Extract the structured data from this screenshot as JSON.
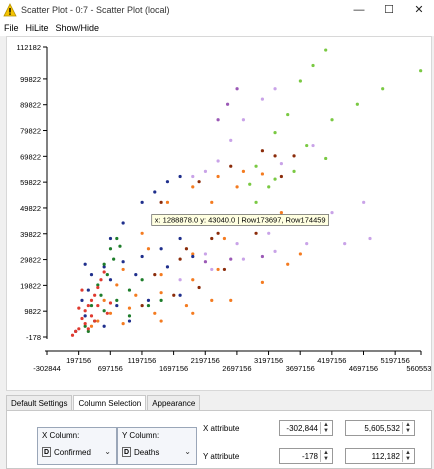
{
  "window": {
    "title": "Scatter Plot - 0:7 - Scatter Plot (local)",
    "minimize": "—",
    "maximize": "☐",
    "close": "✕"
  },
  "menu": [
    "File",
    "HiLite",
    "Show/Hide"
  ],
  "chart_data": {
    "type": "scatter",
    "title": "",
    "xlabel": "",
    "ylabel": "",
    "xlim": [
      -302844,
      5605532
    ],
    "ylim": [
      -178,
      112182
    ],
    "x_ticks_upper": [
      "197156",
      "1197156",
      "2197156",
      "3197156",
      "4197156",
      "5197156"
    ],
    "x_ticks_lower": [
      "-302844",
      "697156",
      "1697156",
      "2697156",
      "3697156",
      "4697156",
      "5605532"
    ],
    "y_ticks": [
      "112182",
      "99822",
      "89822",
      "79822",
      "69822",
      "59822",
      "49822",
      "39822",
      "29822",
      "19822",
      "9822",
      "-178"
    ],
    "tooltip": "x: 1288878.0 y: 43040.0 | Row173697, Row174459",
    "tooltip_point": {
      "x": 1288878.0,
      "y": 43040.0
    },
    "series": [
      {
        "name": "",
        "color": "#7ac943",
        "points": [
          [
            2900000,
            59000
          ],
          [
            3300000,
            79000
          ],
          [
            3700000,
            99000
          ],
          [
            4100000,
            111000
          ],
          [
            3000000,
            66000
          ],
          [
            3500000,
            86000
          ],
          [
            3900000,
            105000
          ],
          [
            3300000,
            61000
          ],
          [
            4200000,
            84000
          ],
          [
            5000000,
            96000
          ],
          [
            5600000,
            103000
          ],
          [
            3800000,
            74000
          ],
          [
            4600000,
            90000
          ],
          [
            2850000,
            46000
          ],
          [
            3000000,
            52000
          ],
          [
            3200000,
            58000
          ],
          [
            3600000,
            64000
          ],
          [
            4100000,
            69000
          ]
        ]
      },
      {
        "name": "",
        "color": "#f47b20",
        "points": [
          [
            600000,
            14000
          ],
          [
            900000,
            26000
          ],
          [
            1200000,
            40000
          ],
          [
            1600000,
            52000
          ],
          [
            2000000,
            58000
          ],
          [
            2400000,
            62000
          ],
          [
            2800000,
            64000
          ],
          [
            800000,
            20000
          ],
          [
            1300000,
            34000
          ],
          [
            1800000,
            44000
          ],
          [
            2300000,
            52000
          ],
          [
            2700000,
            58000
          ],
          [
            3100000,
            63000
          ],
          [
            700000,
            9000
          ],
          [
            1100000,
            16000
          ],
          [
            1500000,
            24000
          ],
          [
            2000000,
            32000
          ],
          [
            2500000,
            38000
          ],
          [
            3000000,
            44000
          ],
          [
            3400000,
            48000
          ],
          [
            500000,
            6000
          ],
          [
            1000000,
            11000
          ],
          [
            1500000,
            17000
          ],
          [
            2000000,
            22000
          ],
          [
            2400000,
            26000
          ],
          [
            400000,
            4000
          ],
          [
            900000,
            5000
          ],
          [
            1400000,
            9000
          ],
          [
            1900000,
            12000
          ],
          [
            2300000,
            14000
          ],
          [
            1500000,
            6000
          ],
          [
            2000000,
            9000
          ],
          [
            2600000,
            14000
          ],
          [
            3100000,
            21000
          ],
          [
            3500000,
            28000
          ],
          [
            3700000,
            32000
          ]
        ]
      },
      {
        "name": "",
        "color": "#8b2c0a",
        "points": [
          [
            1500000,
            52000
          ],
          [
            2100000,
            60000
          ],
          [
            2600000,
            66000
          ],
          [
            3100000,
            72000
          ],
          [
            3300000,
            70000
          ],
          [
            1400000,
            24000
          ],
          [
            1900000,
            34000
          ],
          [
            2400000,
            40000
          ],
          [
            2800000,
            46000
          ],
          [
            1200000,
            12000
          ],
          [
            1700000,
            16000
          ],
          [
            2100000,
            19000
          ],
          [
            2500000,
            26000
          ],
          [
            3000000,
            40000
          ],
          [
            3400000,
            62000
          ],
          [
            3600000,
            70000
          ],
          [
            1800000,
            30000
          ],
          [
            2300000,
            38000
          ],
          [
            2600000,
            44000
          ]
        ]
      },
      {
        "name": "",
        "color": "#1f2f8c",
        "points": [
          [
            150000,
            2000
          ],
          [
            250000,
            14000
          ],
          [
            300000,
            28000
          ],
          [
            400000,
            24000
          ],
          [
            600000,
            27000
          ],
          [
            900000,
            29000
          ],
          [
            1200000,
            31000
          ],
          [
            1500000,
            34000
          ],
          [
            1800000,
            38000
          ],
          [
            350000,
            18000
          ],
          [
            700000,
            22000
          ],
          [
            1100000,
            24000
          ],
          [
            1600000,
            27000
          ],
          [
            2000000,
            31000
          ],
          [
            300000,
            8000
          ],
          [
            800000,
            12000
          ],
          [
            1300000,
            14000
          ],
          [
            1800000,
            16000
          ],
          [
            600000,
            4000
          ],
          [
            1000000,
            6000
          ],
          [
            700000,
            38000
          ],
          [
            900000,
            44000
          ],
          [
            1200000,
            52000
          ],
          [
            1400000,
            56000
          ],
          [
            1600000,
            60000
          ],
          [
            1800000,
            62000
          ]
        ]
      },
      {
        "name": "",
        "color": "#1e7d2b",
        "points": [
          [
            300000,
            4000
          ],
          [
            400000,
            12000
          ],
          [
            500000,
            20000
          ],
          [
            600000,
            28000
          ],
          [
            700000,
            34000
          ],
          [
            800000,
            38000
          ],
          [
            450000,
            6000
          ],
          [
            550000,
            16000
          ],
          [
            650000,
            24000
          ],
          [
            750000,
            30000
          ],
          [
            850000,
            35000
          ],
          [
            1000000,
            18000
          ],
          [
            1200000,
            22000
          ],
          [
            1000000,
            8000
          ],
          [
            1300000,
            12000
          ],
          [
            1500000,
            14000
          ],
          [
            350000,
            2000
          ],
          [
            600000,
            10000
          ],
          [
            800000,
            14000
          ]
        ]
      },
      {
        "name": "",
        "color": "#e03a2f",
        "points": [
          [
            100000,
            500
          ],
          [
            200000,
            3000
          ],
          [
            250000,
            7000
          ],
          [
            300000,
            10000
          ],
          [
            350000,
            12000
          ],
          [
            400000,
            14000
          ],
          [
            450000,
            16000
          ],
          [
            500000,
            19000
          ],
          [
            550000,
            22000
          ],
          [
            600000,
            25000
          ],
          [
            200000,
            11000
          ],
          [
            300000,
            5000
          ],
          [
            400000,
            8000
          ],
          [
            500000,
            12000
          ],
          [
            150000,
            2000
          ],
          [
            350000,
            3000
          ],
          [
            450000,
            6000
          ],
          [
            650000,
            9000
          ],
          [
            700000,
            13000
          ],
          [
            250000,
            18000
          ]
        ]
      },
      {
        "name": "",
        "color": "#c9a3e8",
        "points": [
          [
            2200000,
            32000
          ],
          [
            2700000,
            36000
          ],
          [
            3200000,
            40000
          ],
          [
            3700000,
            44000
          ],
          [
            4200000,
            48000
          ],
          [
            4700000,
            52000
          ],
          [
            2400000,
            68000
          ],
          [
            2600000,
            76000
          ],
          [
            2800000,
            84000
          ],
          [
            3100000,
            92000
          ],
          [
            3300000,
            96000
          ],
          [
            1800000,
            22000
          ],
          [
            2300000,
            26000
          ],
          [
            2800000,
            30000
          ],
          [
            3300000,
            33000
          ],
          [
            3800000,
            36000
          ],
          [
            4400000,
            36000
          ],
          [
            4800000,
            38000
          ],
          [
            3400000,
            67000
          ],
          [
            3900000,
            74000
          ],
          [
            2000000,
            62000
          ],
          [
            2200000,
            64000
          ]
        ]
      },
      {
        "name": "",
        "color": "#9b59b6",
        "points": [
          [
            2200000,
            29000
          ],
          [
            2600000,
            30000
          ],
          [
            3100000,
            31000
          ],
          [
            2400000,
            84000
          ],
          [
            2550000,
            90000
          ],
          [
            2700000,
            96000
          ]
        ]
      }
    ],
    "grid": false,
    "legend": "none"
  },
  "tabs": [
    "Default Settings",
    "Column Selection",
    "Appearance"
  ],
  "active_tab": 1,
  "column_selection": {
    "x_label": "X Column:",
    "x_type": "D",
    "x_value": "Confirmed",
    "y_label": "Y Column:",
    "y_type": "D",
    "y_value": "Deaths"
  },
  "attributes": {
    "x_label": "X attribute",
    "x_min": "-302,844",
    "x_max": "5,605,532",
    "y_label": "Y attribute",
    "y_min": "-178",
    "y_max": "112,182"
  }
}
